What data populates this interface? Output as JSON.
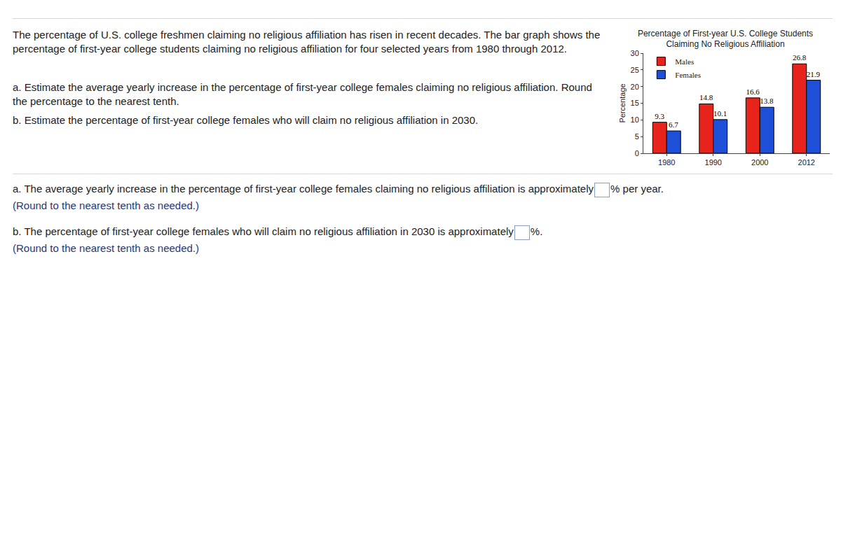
{
  "document": {
    "intro": "The percentage of U.S. college freshmen claiming no religious affiliation has risen in recent decades. The bar graph shows the percentage of first-year college students claiming no religious affiliation for four selected years from 1980 through 2012.",
    "questions": [
      "a. Estimate the average yearly increase in the percentage of first-year college females claiming no religious affiliation. Round the percentage to the nearest tenth.",
      "b. Estimate the percentage of first-year college females who will claim no religious affiliation in 2030."
    ],
    "answers": [
      {
        "before": "a. The average yearly increase in the percentage of first-year college females claiming no religious affiliation is approximately",
        "after": "% per year.",
        "hint": "(Round to the nearest tenth as needed.)"
      },
      {
        "before": "b. The percentage of first-year college females who will claim no religious affiliation in 2030 is approximately",
        "after": "%.",
        "hint": "(Round to the nearest tenth as needed.)"
      }
    ]
  },
  "chart_data": {
    "type": "bar",
    "title": "Percentage of First-year U.S. College Students",
    "subtitle": "Claiming No Religious Affiliation",
    "y_label": "Percentage",
    "categories": [
      "1980",
      "1990",
      "2000",
      "2012"
    ],
    "series": [
      {
        "name": "Males",
        "color": "#e8231b",
        "values": [
          9.3,
          14.8,
          16.6,
          26.8
        ]
      },
      {
        "name": "Females",
        "color": "#1d4fd8",
        "values": [
          6.7,
          10.1,
          13.8,
          21.9
        ]
      }
    ],
    "ylim": [
      0,
      30
    ],
    "yticks": [
      0,
      5,
      10,
      15,
      20,
      25,
      30
    ],
    "grid": false,
    "legend": "upper left",
    "data_labels": true
  }
}
